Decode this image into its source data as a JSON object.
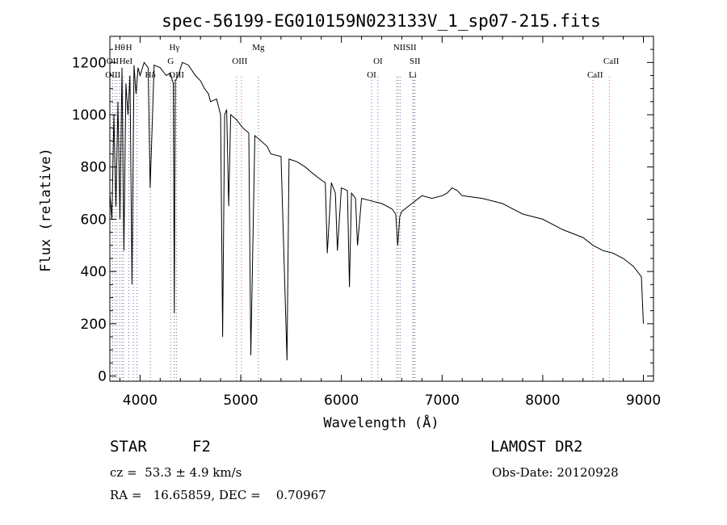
{
  "chart_data": {
    "type": "line",
    "title": "spec-56199-EG010159N023133V_1_sp07-215.fits",
    "xlabel": "Wavelength (Å)",
    "ylabel": "Flux (relative)",
    "xlim": [
      3700,
      9100
    ],
    "ylim": [
      -20,
      1300
    ],
    "xticks": [
      4000,
      5000,
      6000,
      7000,
      8000,
      9000
    ],
    "yticks": [
      0,
      200,
      400,
      600,
      800,
      1000,
      1200
    ],
    "grid": false,
    "series": [
      {
        "x": [
          3700,
          3720,
          3740,
          3760,
          3780,
          3800,
          3820,
          3840,
          3860,
          3880,
          3900,
          3920,
          3940,
          3960,
          3980,
          4000,
          4040,
          4080,
          4100,
          4140,
          4200,
          4260,
          4300,
          4330,
          4340,
          4350,
          4380,
          4420,
          4480,
          4550,
          4600,
          4640,
          4660,
          4680,
          4700,
          4760,
          4800,
          4820,
          4840,
          4860,
          4880,
          4900,
          4960,
          5020,
          5080,
          5100,
          5140,
          5200,
          5260,
          5300,
          5400,
          5460,
          5480,
          5560,
          5640,
          5700,
          5800,
          5840,
          5860,
          5900,
          5940,
          5960,
          6000,
          6060,
          6080,
          6100,
          6140,
          6160,
          6200,
          6300,
          6400,
          6500,
          6540,
          6560,
          6580,
          6600,
          6700,
          6800,
          6900,
          7000,
          7050,
          7100,
          7150,
          7200,
          7400,
          7600,
          7800,
          8000,
          8200,
          8400,
          8500,
          8600,
          8700,
          8800,
          8900,
          8980,
          9000
        ],
        "y": [
          700,
          600,
          1000,
          650,
          1050,
          600,
          1180,
          480,
          1120,
          1000,
          1150,
          350,
          1190,
          1080,
          1180,
          1150,
          1200,
          1180,
          720,
          1190,
          1180,
          1150,
          1160,
          1120,
          240,
          1130,
          1150,
          1200,
          1190,
          1150,
          1130,
          1100,
          1090,
          1080,
          1050,
          1060,
          1000,
          150,
          1000,
          1020,
          650,
          1000,
          980,
          950,
          930,
          80,
          920,
          900,
          880,
          850,
          840,
          60,
          830,
          820,
          800,
          780,
          750,
          740,
          470,
          740,
          700,
          480,
          720,
          710,
          340,
          700,
          680,
          500,
          680,
          670,
          660,
          640,
          620,
          500,
          610,
          630,
          660,
          690,
          680,
          690,
          700,
          720,
          710,
          690,
          680,
          660,
          620,
          600,
          560,
          530,
          500,
          480,
          470,
          450,
          420,
          380,
          200
        ]
      }
    ],
    "line_labels": [
      {
        "text": "Hθ",
        "x": 3798,
        "row": 0
      },
      {
        "text": "H",
        "x": 3889,
        "row": 0
      },
      {
        "text": "Hγ",
        "x": 4341,
        "row": 0
      },
      {
        "text": "Mg",
        "x": 5175,
        "row": 0
      },
      {
        "text": "NIISII",
        "x": 6630,
        "row": 0
      },
      {
        "text": "OII",
        "x": 3727,
        "row": 1
      },
      {
        "text": "HeI",
        "x": 3860,
        "row": 1
      },
      {
        "text": "G",
        "x": 4304,
        "row": 1
      },
      {
        "text": "OIII",
        "x": 4990,
        "row": 1
      },
      {
        "text": "OI",
        "x": 6363,
        "row": 1
      },
      {
        "text": "SII",
        "x": 6731,
        "row": 1
      },
      {
        "text": "CaII",
        "x": 8680,
        "row": 1
      },
      {
        "text": "OIII",
        "x": 3730,
        "row": 2
      },
      {
        "text": "Hδ",
        "x": 4102,
        "row": 2
      },
      {
        "text": "OIII",
        "x": 4363,
        "row": 2
      },
      {
        "text": "OI",
        "x": 6300,
        "row": 2
      },
      {
        "text": "Li",
        "x": 6708,
        "row": 2
      },
      {
        "text": "CaII",
        "x": 8520,
        "row": 2
      }
    ],
    "marker_lines": {
      "blue": [
        3728,
        3770,
        3798,
        3835,
        3889,
        3934,
        3970,
        4102,
        4304,
        4341,
        4363,
        4959,
        5175,
        6300,
        6363,
        6563,
        6583,
        6716,
        6731
      ],
      "red": [
        3750,
        3820,
        4340,
        5007,
        6548,
        6708,
        8498,
        8662
      ]
    },
    "line_colors": {
      "spectrum": "#000000",
      "marker_blue": "#5a6ea8",
      "marker_red": "#c06060"
    }
  },
  "info": {
    "object_type": "STAR",
    "subclass": "F2",
    "survey": "LAMOST DR2",
    "redshift": "cz =  53.3 ± 4.9 km/s",
    "obs_date": "Obs-Date: 20120928",
    "coords": "RA =   16.65859, DEC =    0.70967"
  }
}
